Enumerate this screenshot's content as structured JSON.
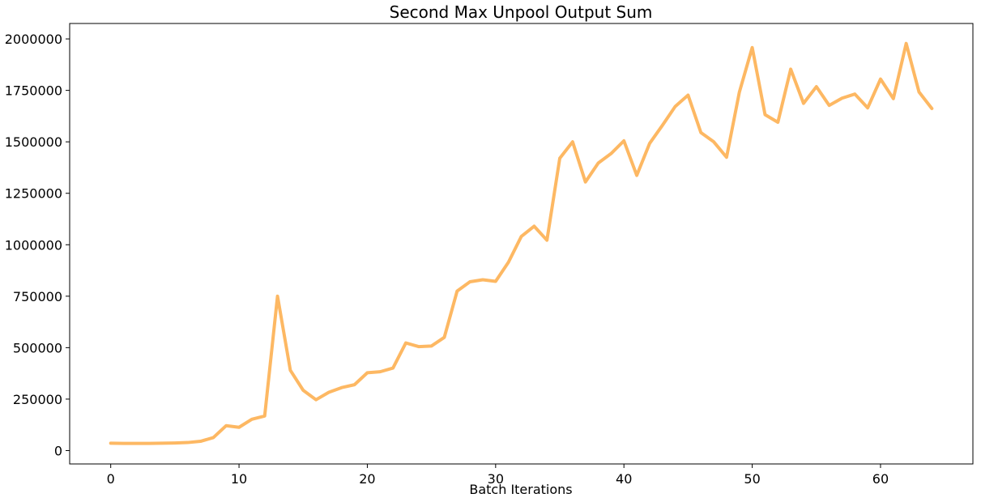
{
  "chart_data": {
    "type": "line",
    "title": "Second Max Unpool Output Sum",
    "xlabel": "Batch Iterations",
    "ylabel": "",
    "xlim": [
      -3.2,
      67.2
    ],
    "ylim": [
      -65000,
      2075000
    ],
    "xticks": [
      0,
      10,
      20,
      30,
      40,
      50,
      60
    ],
    "yticks": [
      0,
      250000,
      500000,
      750000,
      1000000,
      1250000,
      1500000,
      1750000,
      2000000
    ],
    "grid": false,
    "series": [
      {
        "color": "#fdb863",
        "x": [
          0,
          1,
          2,
          3,
          4,
          5,
          6,
          7,
          8,
          9,
          10,
          11,
          12,
          13,
          14,
          15,
          16,
          17,
          18,
          19,
          20,
          21,
          22,
          23,
          24,
          25,
          26,
          27,
          28,
          29,
          30,
          31,
          32,
          33,
          34,
          35,
          36,
          37,
          38,
          39,
          40,
          41,
          42,
          43,
          44,
          45,
          46,
          47,
          48,
          49,
          50,
          51,
          52,
          53,
          54,
          55,
          56,
          57,
          58,
          59,
          60,
          61,
          62,
          63,
          64
        ],
        "values": [
          36000,
          35000,
          35000,
          35000,
          36000,
          37000,
          39000,
          45000,
          63000,
          121000,
          113000,
          152000,
          168000,
          750000,
          390000,
          293000,
          247000,
          283000,
          306000,
          320000,
          378000,
          383000,
          401000,
          523000,
          505000,
          508000,
          550000,
          775000,
          820000,
          830000,
          822000,
          915000,
          1040000,
          1090000,
          1022000,
          1420000,
          1500000,
          1305000,
          1397000,
          1443000,
          1505000,
          1337000,
          1492000,
          1580000,
          1672000,
          1727000,
          1545000,
          1500000,
          1425000,
          1742000,
          1958000,
          1632000,
          1595000,
          1853000,
          1687000,
          1768000,
          1677000,
          1712000,
          1732000,
          1665000,
          1805000,
          1710000,
          1978000,
          1742000,
          1662000
        ]
      }
    ]
  }
}
